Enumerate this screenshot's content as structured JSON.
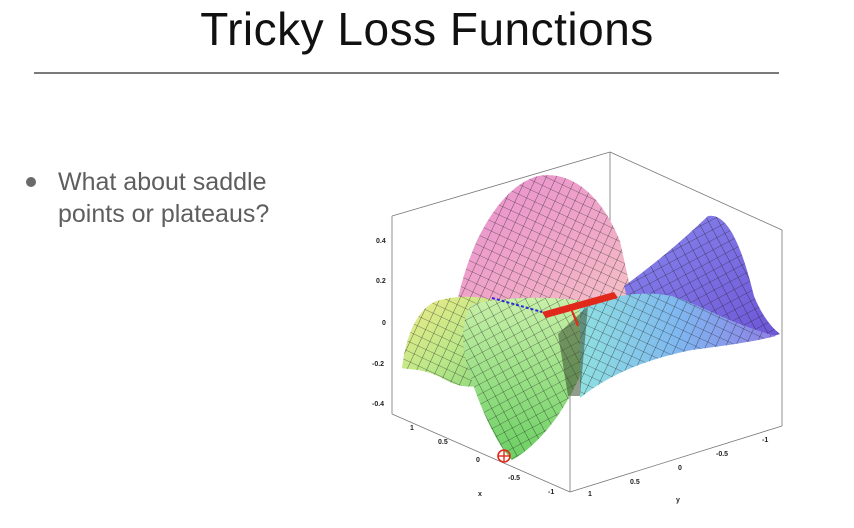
{
  "slide": {
    "title": "Tricky Loss Functions",
    "bullets": [
      "What about saddle points or plateaus?"
    ]
  },
  "plot": {
    "z_ticks": [
      "0.4",
      "0.2",
      "0",
      "-0.2",
      "-0.4"
    ],
    "x_ticks": [
      "1",
      "0.5",
      "0",
      "-0.5",
      "-1"
    ],
    "y_ticks": [
      "1",
      "0.5",
      "0",
      "-0.5",
      "-1"
    ],
    "x_label": "x",
    "y_label": "y"
  },
  "colors": {
    "surface_mesh": "#1a1a1a",
    "marker": "#e0291b",
    "path": "#2a2ad8"
  }
}
